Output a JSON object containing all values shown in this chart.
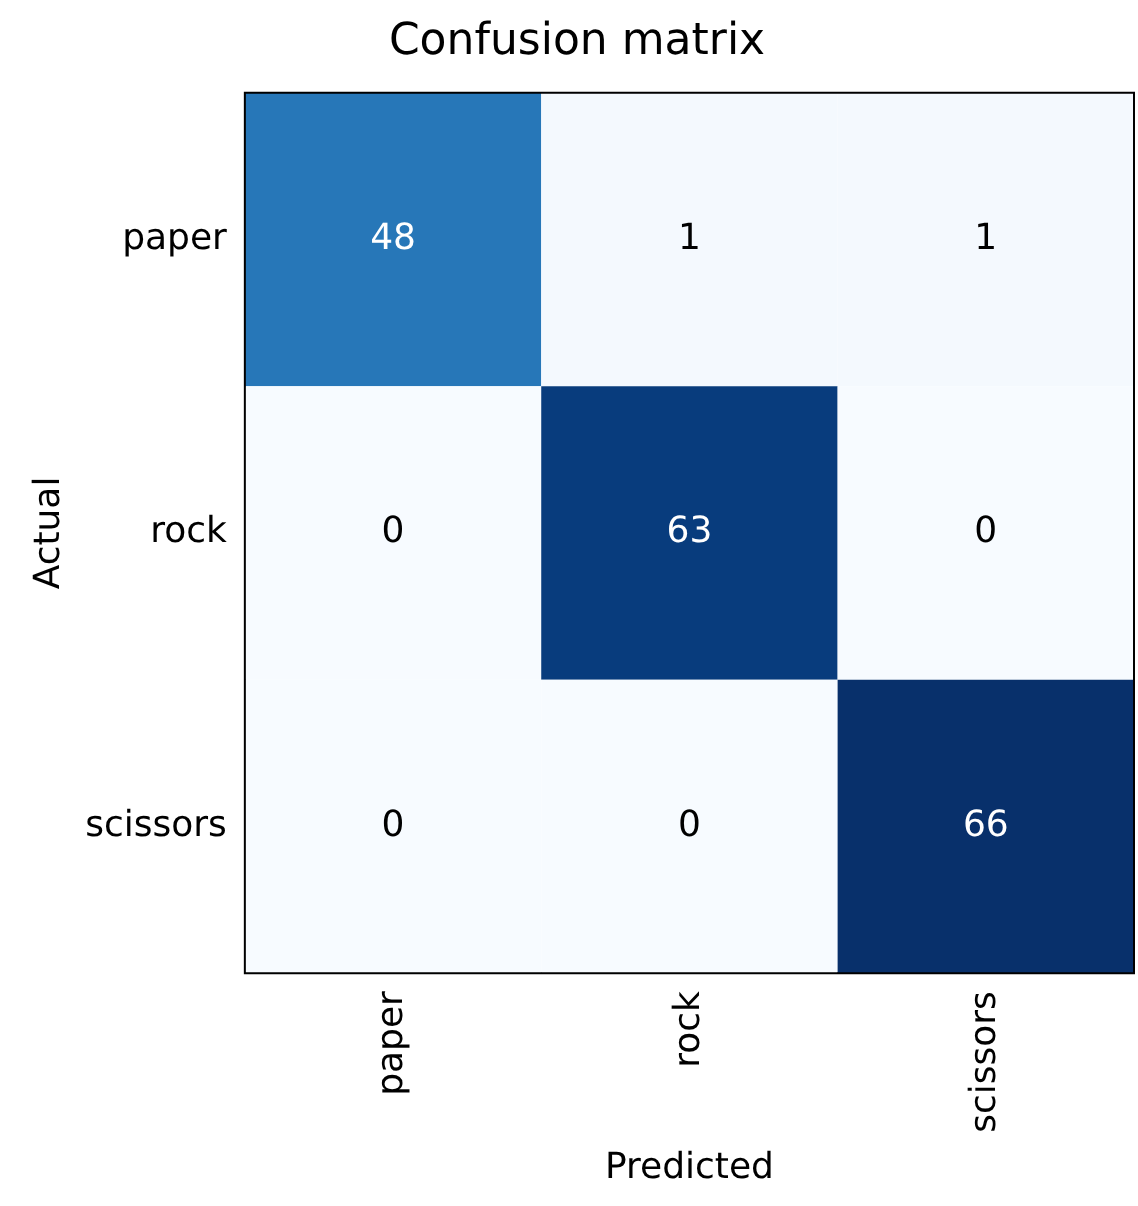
{
  "chart_data": {
    "type": "heatmap",
    "title": "Confusion matrix",
    "xlabel": "Predicted",
    "ylabel": "Actual",
    "categories": [
      "paper",
      "rock",
      "scissors"
    ],
    "y_categories": [
      "paper",
      "rock",
      "scissors"
    ],
    "cells": [
      [
        48,
        1,
        1
      ],
      [
        0,
        63,
        0
      ],
      [
        0,
        0,
        66
      ]
    ],
    "data_labels": true
  }
}
